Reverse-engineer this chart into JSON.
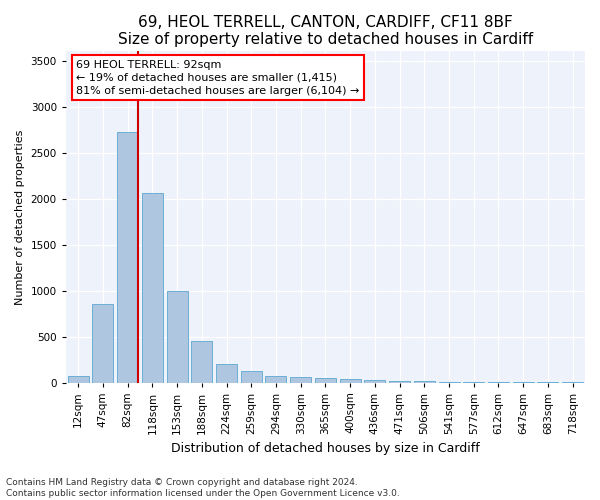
{
  "title": "69, HEOL TERRELL, CANTON, CARDIFF, CF11 8BF",
  "subtitle": "Size of property relative to detached houses in Cardiff",
  "xlabel": "Distribution of detached houses by size in Cardiff",
  "ylabel": "Number of detached properties",
  "categories": [
    "12sqm",
    "47sqm",
    "82sqm",
    "118sqm",
    "153sqm",
    "188sqm",
    "224sqm",
    "259sqm",
    "294sqm",
    "330sqm",
    "365sqm",
    "400sqm",
    "436sqm",
    "471sqm",
    "506sqm",
    "541sqm",
    "577sqm",
    "612sqm",
    "647sqm",
    "683sqm",
    "718sqm"
  ],
  "values": [
    75,
    850,
    2720,
    2060,
    1000,
    450,
    200,
    130,
    75,
    60,
    50,
    35,
    25,
    20,
    15,
    10,
    8,
    5,
    4,
    3,
    2
  ],
  "bar_color": "#aec6e0",
  "bar_edge_color": "#6baed6",
  "vline_color": "#cc0000",
  "vline_x": 2,
  "annotation_line1": "69 HEOL TERRELL: 92sqm",
  "annotation_line2": "← 19% of detached houses are smaller (1,415)",
  "annotation_line3": "81% of semi-detached houses are larger (6,104) →",
  "footnote": "Contains HM Land Registry data © Crown copyright and database right 2024.\nContains public sector information licensed under the Open Government Licence v3.0.",
  "ylim": [
    0,
    3600
  ],
  "yticks": [
    0,
    500,
    1000,
    1500,
    2000,
    2500,
    3000,
    3500
  ],
  "title_fontsize": 11,
  "subtitle_fontsize": 9.5,
  "xlabel_fontsize": 9,
  "ylabel_fontsize": 8,
  "tick_fontsize": 7.5,
  "annotation_fontsize": 8,
  "footnote_fontsize": 6.5,
  "bg_color": "#eef2fa",
  "fig_bg_color": "#ffffff",
  "grid_color": "#ffffff"
}
